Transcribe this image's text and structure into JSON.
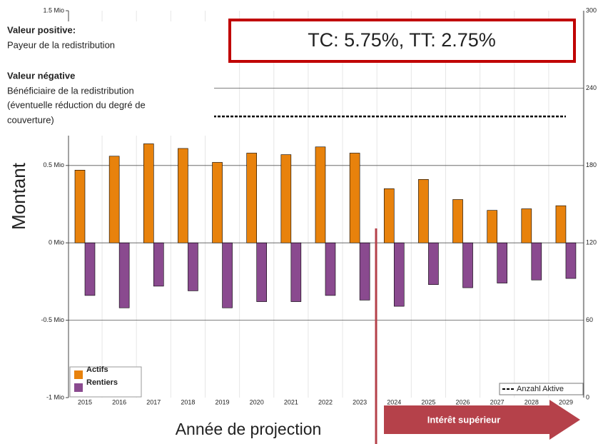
{
  "chart_data": {
    "type": "bar",
    "title": "TC: 5.75%, TT: 2.75%",
    "x_label": "Année de projection",
    "y_label": "Montant",
    "notes": [
      {
        "text": "Valeur positive:",
        "bold": true
      },
      {
        "text": "Payeur de la redistribution",
        "bold": false
      },
      {
        "text": "Valeur négative",
        "bold": true
      },
      {
        "text": "Bénéficiaire de la redistribution",
        "bold": false
      },
      {
        "text": "(éventuelle réduction du degré de",
        "bold": false
      },
      {
        "text": "couverture)",
        "bold": false
      }
    ],
    "arrow_label": "Intérêt supérieur",
    "categories": [
      "2015",
      "2016",
      "2017",
      "2018",
      "2019",
      "2020",
      "2021",
      "2022",
      "2023",
      "2024",
      "2025",
      "2026",
      "2027",
      "2028",
      "2029"
    ],
    "series": [
      {
        "name": "Actifs",
        "color": "#e8820c",
        "values": [
          0.47,
          0.56,
          0.64,
          0.61,
          0.52,
          0.58,
          0.57,
          0.62,
          0.58,
          0.35,
          0.41,
          0.28,
          0.21,
          0.22,
          0.24
        ]
      },
      {
        "name": "Rentiers",
        "color": "#8a4a8f",
        "values": [
          -0.34,
          -0.42,
          -0.28,
          -0.31,
          -0.42,
          -0.38,
          -0.38,
          -0.34,
          -0.37,
          -0.41,
          -0.27,
          -0.29,
          -0.26,
          -0.24,
          -0.23
        ]
      },
      {
        "name": "Anzahl Aktive",
        "color": "#000000",
        "axis": "y2",
        "values": [
          218,
          218,
          218,
          218,
          218,
          218,
          218,
          218,
          218,
          218,
          218,
          218,
          218,
          218,
          218
        ]
      }
    ],
    "ylim": [
      -1,
      1.5
    ],
    "yticks": [
      {
        "value": -1,
        "label": "-1 Mio"
      },
      {
        "value": -0.5,
        "label": "-0.5 Mio"
      },
      {
        "value": 0,
        "label": "0 Mio"
      },
      {
        "value": 0.5,
        "label": "0.5 Mio"
      },
      {
        "value": 1.5,
        "label": "1.5 Mio"
      }
    ],
    "y2lim": [
      0,
      300
    ],
    "y2ticks": [
      0,
      60,
      120,
      180,
      240,
      300
    ]
  }
}
